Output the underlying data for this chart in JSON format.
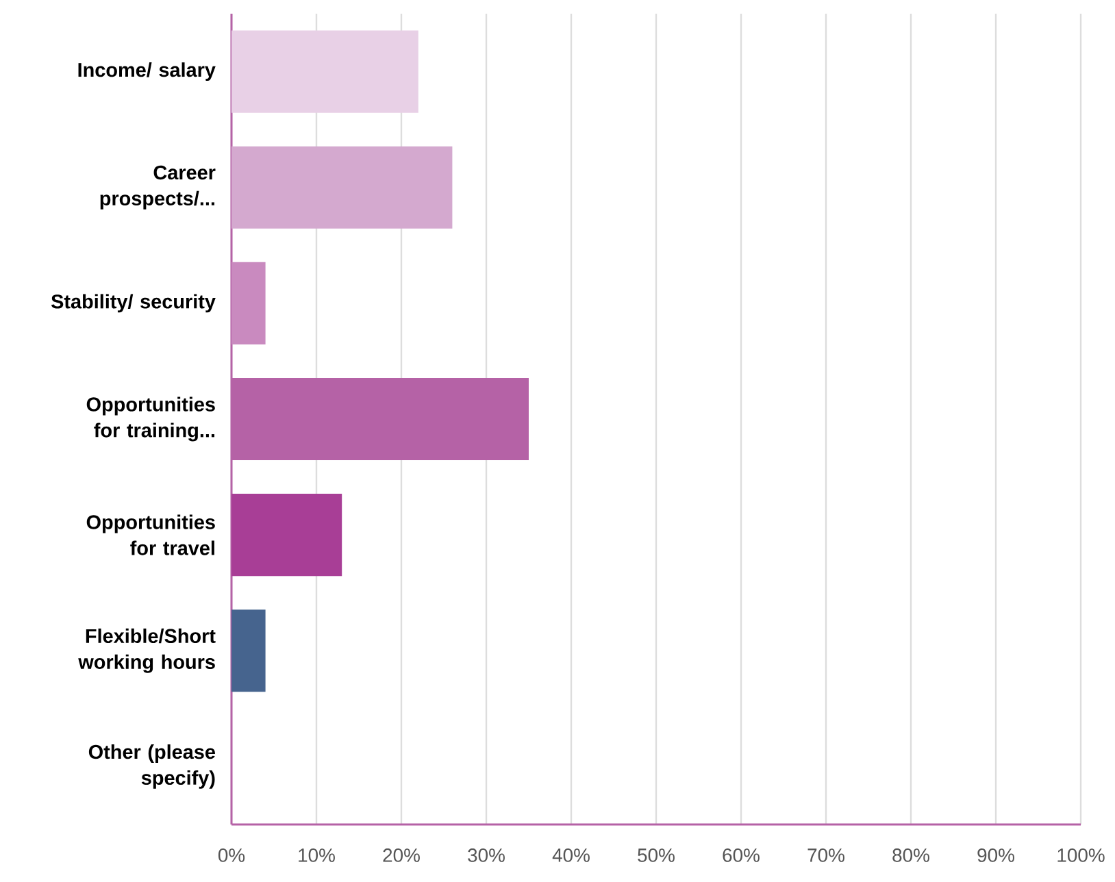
{
  "chart_data": {
    "type": "bar",
    "orientation": "horizontal",
    "categories": [
      "Income/ salary",
      "Career prospects/...",
      "Stability/ security",
      "Opportunities for training...",
      "Opportunities for travel",
      "Flexible/Short working hours",
      "Other (please specify)"
    ],
    "values": [
      22,
      26,
      4,
      35,
      13,
      4,
      0
    ],
    "colors": [
      "#e8d0e6",
      "#d4a9cf",
      "#c98abf",
      "#b562a6",
      "#a83e96",
      "#46648e",
      "#2d3e5c"
    ],
    "xlim": [
      0,
      100
    ],
    "xticks": [
      {
        "value": 0,
        "label": "0%"
      },
      {
        "value": 10,
        "label": "10%"
      },
      {
        "value": 20,
        "label": "20%"
      },
      {
        "value": 30,
        "label": "30%"
      },
      {
        "value": 40,
        "label": "40%"
      },
      {
        "value": 50,
        "label": "50%"
      },
      {
        "value": 60,
        "label": "60%"
      },
      {
        "value": 70,
        "label": "70%"
      },
      {
        "value": 80,
        "label": "80%"
      },
      {
        "value": 90,
        "label": "90%"
      },
      {
        "value": 100,
        "label": "100%"
      }
    ],
    "grid": "x"
  }
}
